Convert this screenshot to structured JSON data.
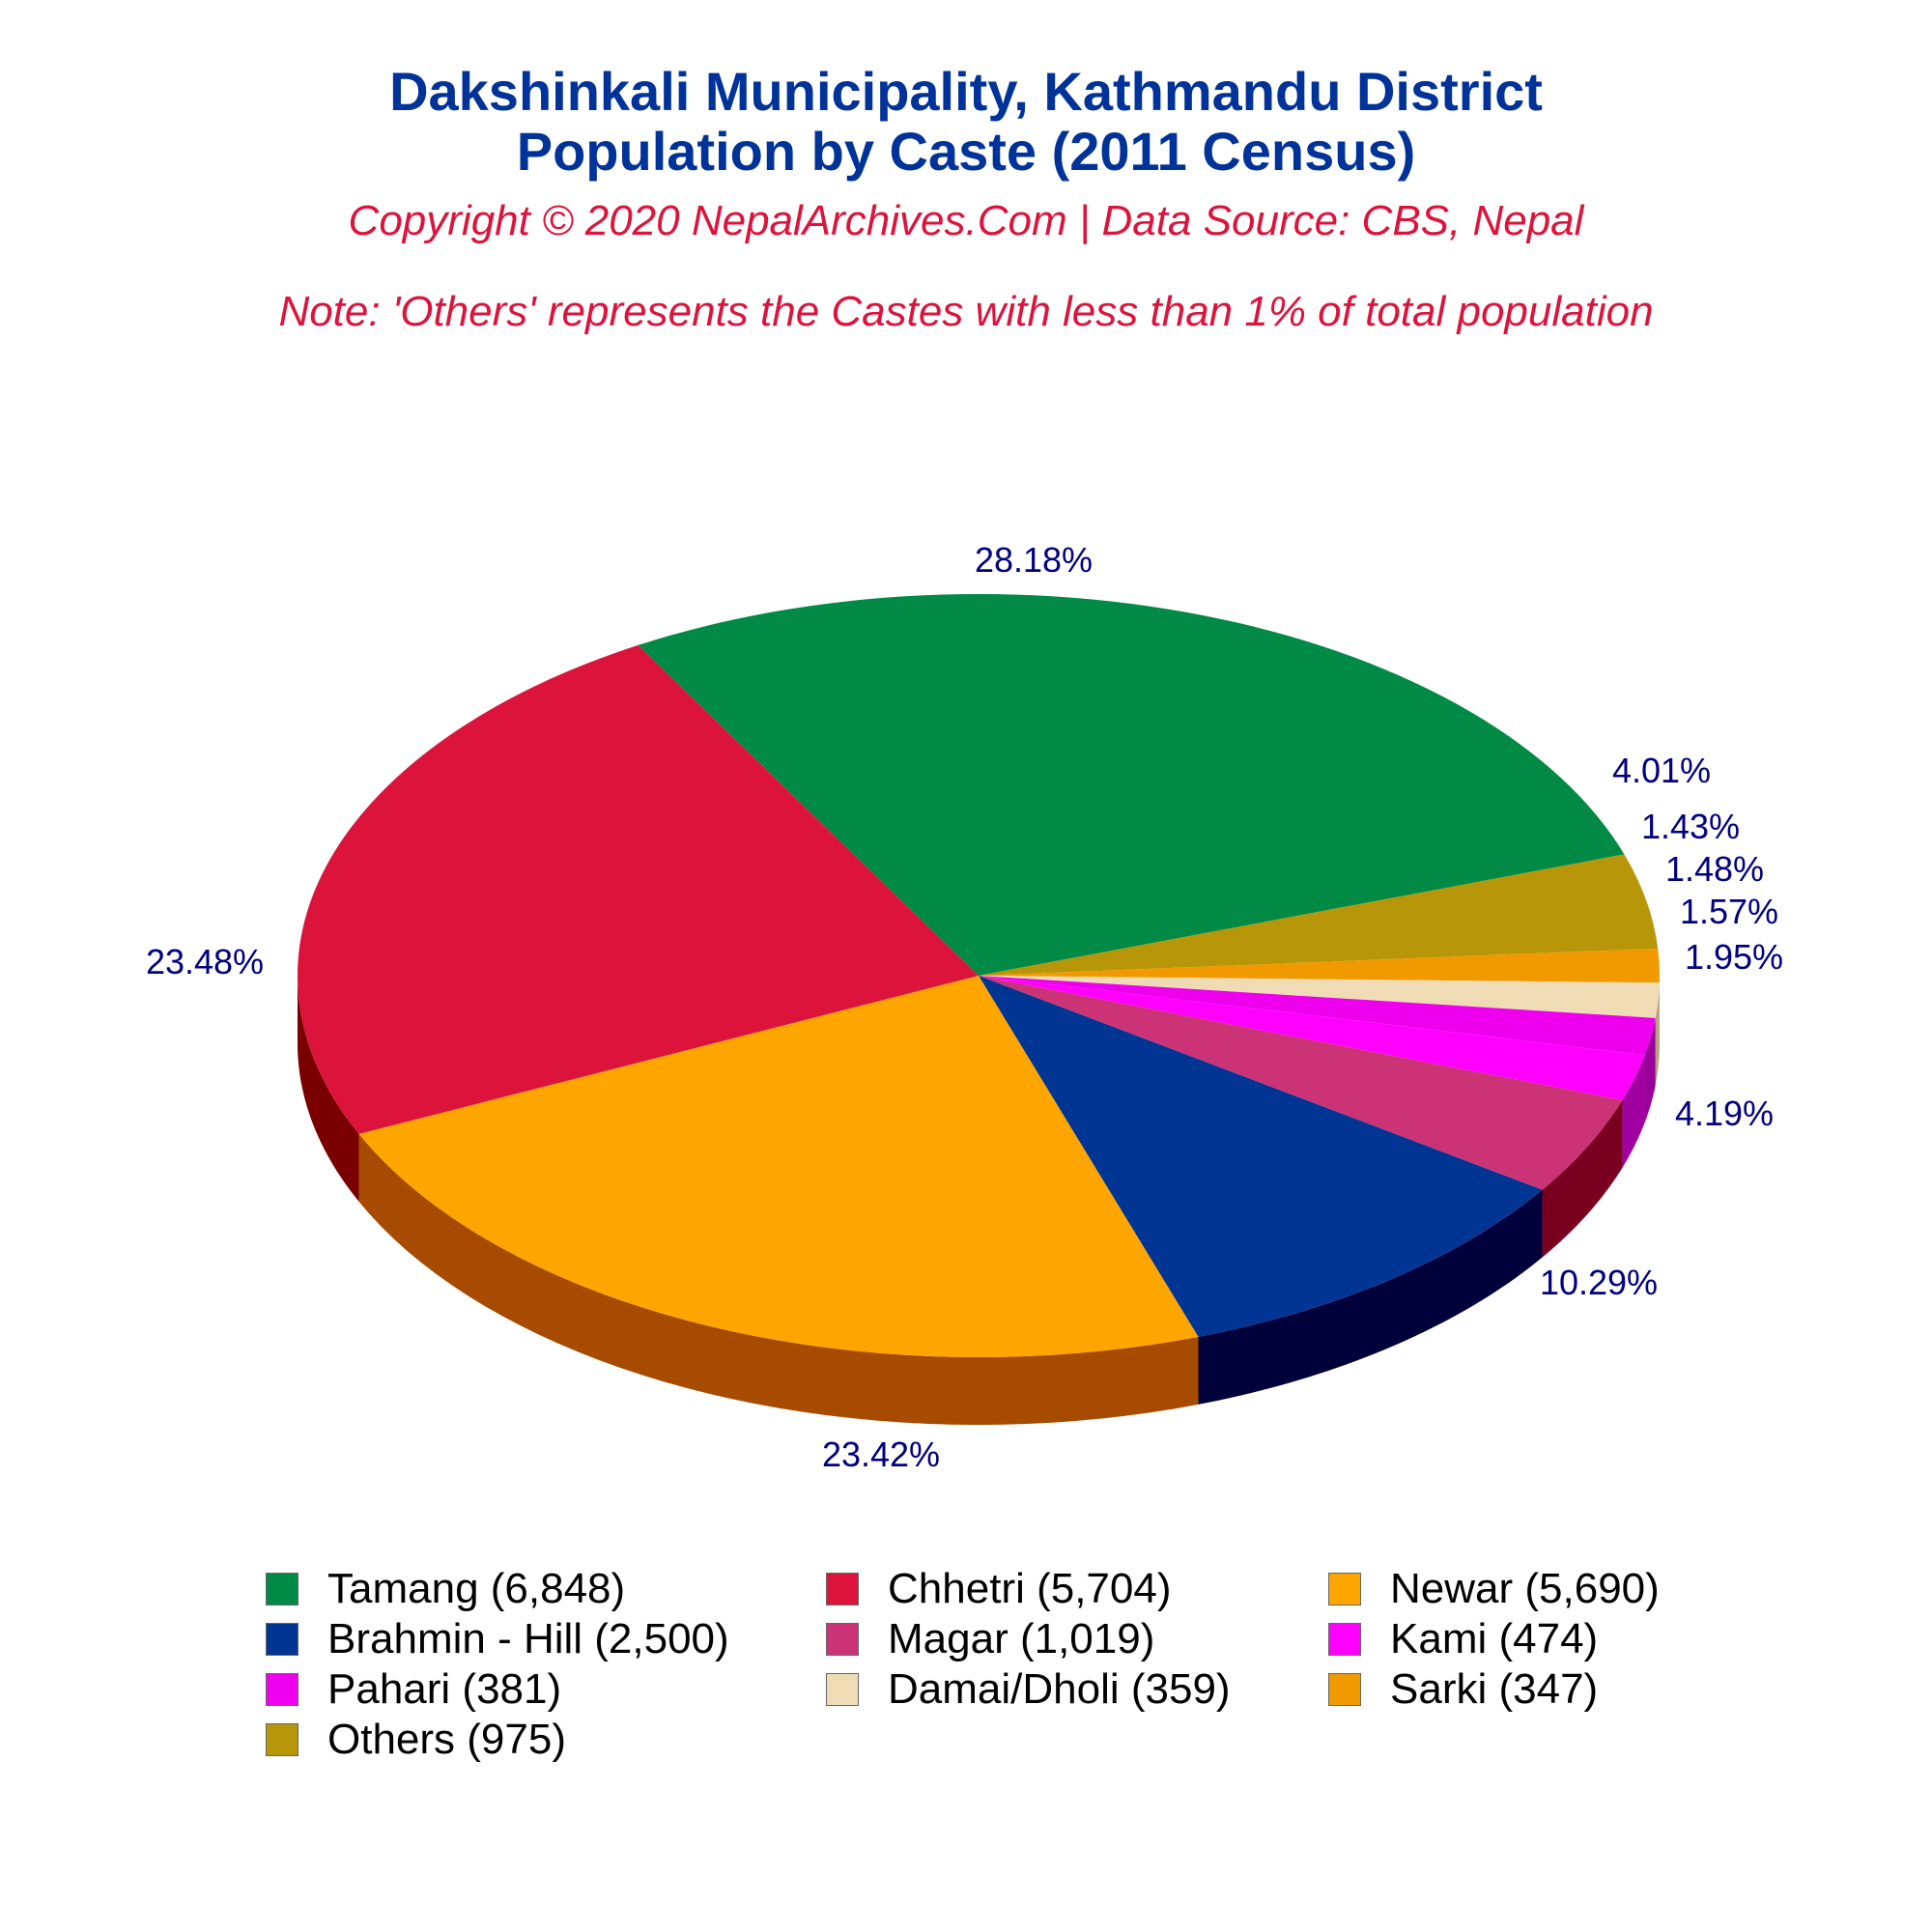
{
  "title_line1": "Dakshinkali Municipality, Kathmandu District",
  "title_line2": "Population by Caste (2011 Census)",
  "subtitle": "Copyright © 2020 NepalArchives.Com | Data Source: CBS, Nepal",
  "note": "Note: 'Others' represents the Castes with less than 1% of total population",
  "chart_data": {
    "type": "pie",
    "title": "Dakshinkali Municipality, Kathmandu District Population by Caste (2011 Census)",
    "slices": [
      {
        "name": "Tamang",
        "value": 6848,
        "percent": 28.18,
        "color": "#008a45",
        "side_color": "#00592c",
        "label": "28.18%",
        "legend": "Tamang (6,848)"
      },
      {
        "name": "Others",
        "value": 975,
        "percent": 4.01,
        "color": "#b8960a",
        "side_color": "#7a6300",
        "label": "4.01%",
        "legend": "Others (975)"
      },
      {
        "name": "Sarki",
        "value": 347,
        "percent": 1.43,
        "color": "#f09a00",
        "side_color": "#a86b00",
        "label": "1.43%",
        "legend": "Sarki (347)"
      },
      {
        "name": "Damai/Dholi",
        "value": 359,
        "percent": 1.48,
        "color": "#f0dcb4",
        "side_color": "#b8a47c",
        "label": "1.48%",
        "legend": "Damai/Dholi (359)"
      },
      {
        "name": "Pahari",
        "value": 381,
        "percent": 1.57,
        "color": "#ee00ee",
        "side_color": "#9a009a",
        "label": "1.57%",
        "legend": "Pahari (381)"
      },
      {
        "name": "Kami",
        "value": 474,
        "percent": 1.95,
        "color": "#ff00ff",
        "side_color": "#a000a0",
        "label": "1.95%",
        "legend": "Kami (474)"
      },
      {
        "name": "Magar",
        "value": 1019,
        "percent": 4.19,
        "color": "#cc3377",
        "side_color": "#7a0020",
        "label": "4.19%",
        "legend": "Magar (1,019)"
      },
      {
        "name": "Brahmin - Hill",
        "value": 2500,
        "percent": 10.29,
        "color": "#003594",
        "side_color": "#00003a",
        "label": "10.29%",
        "legend": "Brahmin - Hill (2,500)"
      },
      {
        "name": "Newar",
        "value": 5690,
        "percent": 23.42,
        "color": "#ffa500",
        "side_color": "#a64b00",
        "label": "23.42%",
        "legend": "Newar (5,690)"
      },
      {
        "name": "Chhetri",
        "value": 5704,
        "percent": 23.48,
        "color": "#dc143c",
        "side_color": "#7a0000",
        "label": "23.48%",
        "legend": "Chhetri (5,704)"
      }
    ],
    "legend_order": [
      "Tamang",
      "Chhetri",
      "Newar",
      "Brahmin - Hill",
      "Magar",
      "Kami",
      "Pahari",
      "Damai/Dholi",
      "Sarki",
      "Others"
    ],
    "label_color": "#000080",
    "legend_placement": "bottom"
  }
}
